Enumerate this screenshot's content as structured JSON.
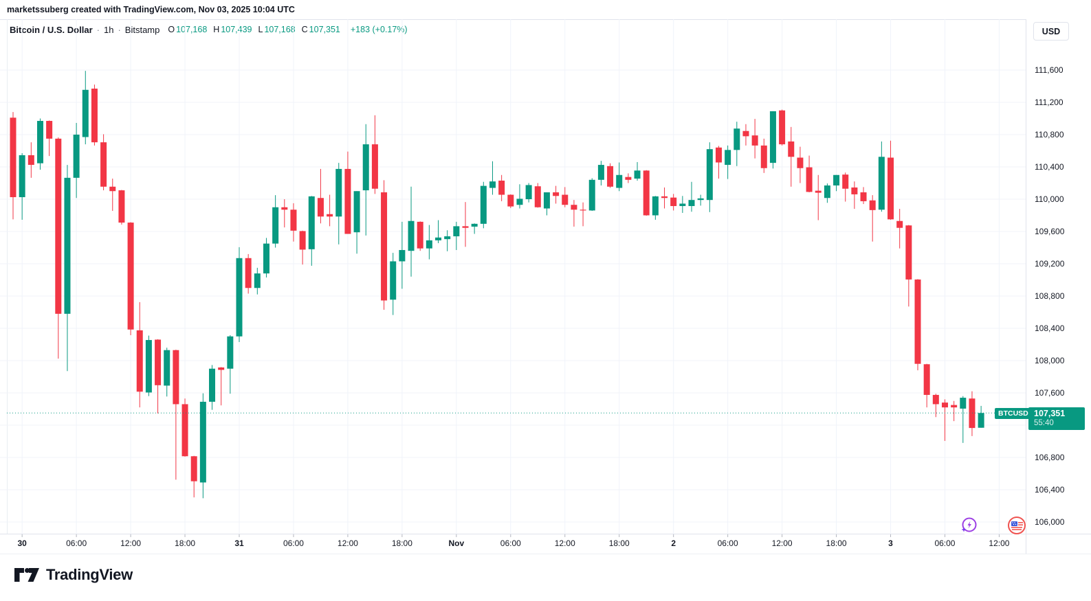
{
  "watermark": "marketssuberg created with TradingView.com, Nov 03, 2025 10:04 UTC",
  "header": {
    "symbol": "Bitcoin / U.S. Dollar",
    "separator": "·",
    "interval": "1h",
    "exchange": "Bitstamp",
    "o_label": "O",
    "o_value": "107,168",
    "h_label": "H",
    "h_value": "107,439",
    "l_label": "L",
    "l_value": "107,168",
    "c_label": "C",
    "c_value": "107,351",
    "change": "+183 (+0.17%)"
  },
  "axis": {
    "currency_button": "USD",
    "price_labels": [
      {
        "label": "111,600",
        "price": 111600
      },
      {
        "label": "111,200",
        "price": 111200
      },
      {
        "label": "110,800",
        "price": 110800
      },
      {
        "label": "110,400",
        "price": 110400
      },
      {
        "label": "110,000",
        "price": 110000
      },
      {
        "label": "109,600",
        "price": 109600
      },
      {
        "label": "109,200",
        "price": 109200
      },
      {
        "label": "108,800",
        "price": 108800
      },
      {
        "label": "108,400",
        "price": 108400
      },
      {
        "label": "108,000",
        "price": 108000
      },
      {
        "label": "107,600",
        "price": 107600
      },
      {
        "label": "106,800",
        "price": 106800
      },
      {
        "label": "106,400",
        "price": 106400
      },
      {
        "label": "106,000",
        "price": 106000
      }
    ],
    "gridline_prices": [
      111600,
      111200,
      110800,
      110400,
      110000,
      109600,
      109200,
      108800,
      108400,
      108000,
      107600,
      107200,
      106800,
      106400,
      106000
    ],
    "time_ticks": [
      {
        "index": 1,
        "label": "30",
        "strong": true
      },
      {
        "index": 7,
        "label": "06:00",
        "strong": false
      },
      {
        "index": 13,
        "label": "12:00",
        "strong": false
      },
      {
        "index": 19,
        "label": "18:00",
        "strong": false
      },
      {
        "index": 25,
        "label": "31",
        "strong": true
      },
      {
        "index": 31,
        "label": "06:00",
        "strong": false
      },
      {
        "index": 37,
        "label": "12:00",
        "strong": false
      },
      {
        "index": 43,
        "label": "18:00",
        "strong": false
      },
      {
        "index": 49,
        "label": "Nov",
        "strong": true
      },
      {
        "index": 55,
        "label": "06:00",
        "strong": false
      },
      {
        "index": 61,
        "label": "12:00",
        "strong": false
      },
      {
        "index": 67,
        "label": "18:00",
        "strong": false
      },
      {
        "index": 73,
        "label": "2",
        "strong": true
      },
      {
        "index": 79,
        "label": "06:00",
        "strong": false
      },
      {
        "index": 85,
        "label": "12:00",
        "strong": false
      },
      {
        "index": 91,
        "label": "18:00",
        "strong": false
      },
      {
        "index": 97,
        "label": "3",
        "strong": true
      },
      {
        "index": 103,
        "label": "06:00",
        "strong": false
      },
      {
        "index": 109,
        "label": "12:00",
        "strong": false
      }
    ]
  },
  "price_line": {
    "symbol_badge": "BTCUSD",
    "price": "107,351",
    "countdown": "55:40",
    "value": 107351
  },
  "footer": {
    "brand": "TradingView"
  },
  "icons": {
    "ai_chat": "lightning-bolt",
    "flag": "us-flag"
  },
  "colors": {
    "up": "#089981",
    "down": "#F23645",
    "text": "#131722",
    "muted": "#787B86",
    "grid": "#F0F3FA",
    "axis_border": "#E0E3EB",
    "tag_bg": "#089981",
    "ai_icon": "#9C3FE4",
    "flag_red": "#EF5350",
    "flag_blue": "#3B5BDB"
  },
  "chart_data": {
    "type": "candlestick",
    "title": "Bitcoin / U.S. Dollar",
    "symbol": "BTCUSD",
    "exchange": "Bitstamp",
    "interval": "1h",
    "first_candle_time": "2025-10-29 23:00 UTC",
    "last_candle_time": "2025-11-03 10:00 UTC",
    "current": {
      "open": 107168,
      "high": 107439,
      "low": 107168,
      "close": 107351,
      "change": 183,
      "change_pct": 0.17
    },
    "ylabel": "USD",
    "y_visible_range": [
      105900,
      112000
    ],
    "grid": true,
    "candles_ohlc": [
      [
        111010,
        111080,
        109750,
        110025
      ],
      [
        110025,
        110570,
        109745,
        110545
      ],
      [
        110545,
        110705,
        110265,
        110425
      ],
      [
        110445,
        111000,
        110365,
        110970
      ],
      [
        110970,
        110975,
        110535,
        110750
      ],
      [
        110750,
        110765,
        108025,
        108580
      ],
      [
        108580,
        110425,
        107870,
        110265
      ],
      [
        110265,
        110945,
        110015,
        110800
      ],
      [
        110770,
        111590,
        110680,
        111355
      ],
      [
        111370,
        111420,
        110665,
        110705
      ],
      [
        110705,
        110805,
        110110,
        110155
      ],
      [
        110155,
        110255,
        109855,
        110100
      ],
      [
        110110,
        110115,
        109685,
        109710
      ],
      [
        109710,
        109715,
        108315,
        108385
      ],
      [
        108375,
        108725,
        107420,
        107615
      ],
      [
        107605,
        108310,
        107560,
        108255
      ],
      [
        108260,
        108265,
        107345,
        107695
      ],
      [
        107690,
        108160,
        107555,
        108130
      ],
      [
        108130,
        108135,
        106525,
        107460
      ],
      [
        107460,
        107530,
        106810,
        106815
      ],
      [
        106815,
        106820,
        106305,
        106505
      ],
      [
        106490,
        107595,
        106295,
        107490
      ],
      [
        107490,
        107945,
        107390,
        107900
      ],
      [
        107915,
        107920,
        107445,
        107885
      ],
      [
        107900,
        108315,
        107590,
        108300
      ],
      [
        108300,
        109405,
        108230,
        109270
      ],
      [
        109270,
        109320,
        108830,
        108900
      ],
      [
        108900,
        109150,
        108820,
        109080
      ],
      [
        109080,
        109520,
        109030,
        109450
      ],
      [
        109450,
        110050,
        109400,
        109900
      ],
      [
        109900,
        110000,
        109650,
        109870
      ],
      [
        109870,
        109950,
        109475,
        109610
      ],
      [
        109605,
        109610,
        109190,
        109375
      ],
      [
        109380,
        110040,
        109175,
        110035
      ],
      [
        110015,
        110375,
        109700,
        109785
      ],
      [
        109815,
        110055,
        109665,
        109785
      ],
      [
        109785,
        110450,
        109440,
        110375
      ],
      [
        110375,
        110590,
        109570,
        109570
      ],
      [
        109590,
        110100,
        109325,
        110100
      ],
      [
        110110,
        110930,
        109550,
        110680
      ],
      [
        110680,
        111040,
        110065,
        110130
      ],
      [
        110085,
        110235,
        108630,
        108745
      ],
      [
        108755,
        109335,
        108565,
        109230
      ],
      [
        109230,
        109720,
        108890,
        109370
      ],
      [
        109360,
        110155,
        109040,
        109730
      ],
      [
        109720,
        109725,
        109360,
        109390
      ],
      [
        109390,
        109680,
        109255,
        109490
      ],
      [
        109490,
        109740,
        109455,
        109525
      ],
      [
        109505,
        109615,
        109355,
        109540
      ],
      [
        109540,
        109720,
        109370,
        109665
      ],
      [
        109665,
        109965,
        109410,
        109645
      ],
      [
        109660,
        109700,
        109570,
        109695
      ],
      [
        109695,
        110215,
        109640,
        110165
      ],
      [
        110140,
        110470,
        110055,
        110220
      ],
      [
        110230,
        110300,
        109975,
        110055
      ],
      [
        110055,
        110060,
        109890,
        109910
      ],
      [
        109930,
        110185,
        109885,
        110005
      ],
      [
        110000,
        110200,
        109960,
        110175
      ],
      [
        110160,
        110200,
        109895,
        109900
      ],
      [
        109885,
        110085,
        109800,
        110085
      ],
      [
        110085,
        110165,
        109945,
        110040
      ],
      [
        110055,
        110150,
        109900,
        109930
      ],
      [
        109930,
        109990,
        109660,
        109870
      ],
      [
        109870,
        109960,
        109665,
        109860
      ],
      [
        109860,
        110260,
        109855,
        110240
      ],
      [
        110240,
        110475,
        110170,
        110425
      ],
      [
        110410,
        110445,
        110140,
        110155
      ],
      [
        110140,
        110455,
        110100,
        110300
      ],
      [
        110275,
        110320,
        110200,
        110240
      ],
      [
        110255,
        110460,
        110230,
        110355
      ],
      [
        110355,
        110360,
        109795,
        109800
      ],
      [
        109800,
        110040,
        109745,
        110035
      ],
      [
        110035,
        110145,
        109885,
        110015
      ],
      [
        110020,
        110065,
        109860,
        109915
      ],
      [
        109915,
        110040,
        109830,
        109945
      ],
      [
        109915,
        110215,
        109845,
        109990
      ],
      [
        109990,
        110055,
        109920,
        110010
      ],
      [
        109990,
        110705,
        109840,
        110620
      ],
      [
        110640,
        110660,
        110255,
        110455
      ],
      [
        110425,
        110665,
        110250,
        110610
      ],
      [
        110610,
        110960,
        110410,
        110875
      ],
      [
        110845,
        110930,
        110665,
        110780
      ],
      [
        110790,
        110995,
        110505,
        110665
      ],
      [
        110665,
        110750,
        110325,
        110385
      ],
      [
        110450,
        111090,
        110380,
        111090
      ],
      [
        111100,
        111110,
        110665,
        110680
      ],
      [
        110715,
        110895,
        110155,
        110525
      ],
      [
        110515,
        110650,
        110200,
        110385
      ],
      [
        110395,
        110540,
        110085,
        110090
      ],
      [
        110105,
        110300,
        109740,
        110080
      ],
      [
        110015,
        110195,
        109955,
        110170
      ],
      [
        110170,
        110300,
        110100,
        110300
      ],
      [
        110305,
        110330,
        109970,
        110130
      ],
      [
        110145,
        110220,
        109880,
        110060
      ],
      [
        110085,
        110150,
        109940,
        109975
      ],
      [
        109985,
        110050,
        109475,
        109865
      ],
      [
        109870,
        110715,
        109845,
        110525
      ],
      [
        110515,
        110725,
        109745,
        109750
      ],
      [
        109730,
        109880,
        109390,
        109645
      ],
      [
        109675,
        109680,
        108670,
        109005
      ],
      [
        109005,
        109010,
        107880,
        107960
      ],
      [
        107955,
        107960,
        107420,
        107575
      ],
      [
        107575,
        107590,
        107300,
        107460
      ],
      [
        107480,
        107520,
        107005,
        107420
      ],
      [
        107450,
        107500,
        107250,
        107420
      ],
      [
        107405,
        107560,
        106980,
        107540
      ],
      [
        107530,
        107620,
        107065,
        107165
      ],
      [
        107168,
        107439,
        107168,
        107351
      ]
    ]
  }
}
